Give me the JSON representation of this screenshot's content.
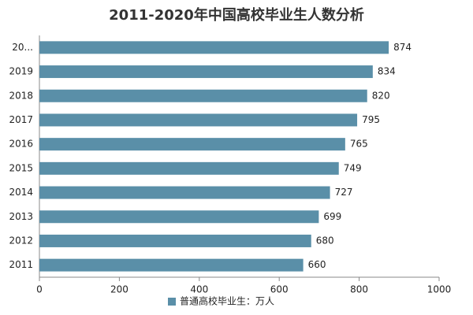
{
  "chart_data": {
    "type": "bar",
    "orientation": "horizontal",
    "title": "2011-2020年中国高校毕业生人数分析",
    "categories": [
      "20...",
      "2019",
      "2018",
      "2017",
      "2016",
      "2015",
      "2014",
      "2013",
      "2012",
      "2011"
    ],
    "series": [
      {
        "name": "普通高校毕业生：万人",
        "color": "#5a8fa8",
        "values": [
          874,
          834,
          820,
          795,
          765,
          749,
          727,
          699,
          680,
          660
        ]
      }
    ],
    "xlim": [
      0,
      1000
    ],
    "xticks": [
      0,
      200,
      400,
      600,
      800,
      1000
    ],
    "grid": false,
    "legend": "bottom"
  }
}
